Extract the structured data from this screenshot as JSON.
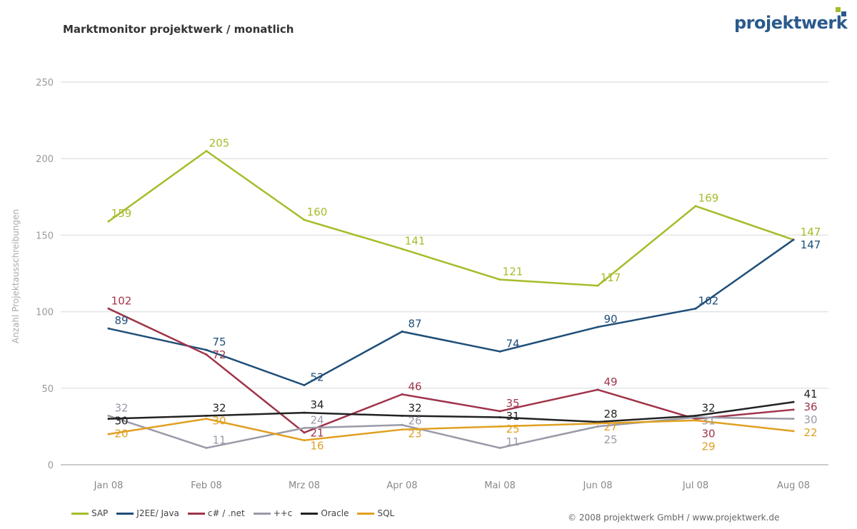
{
  "title": "Marktmonitor projektwerk / monatlich",
  "logo": "projektwerk",
  "copyright": "© 2008 projektwerk GmbH / www.projektwerk.de",
  "chart_data": {
    "type": "line",
    "title": "Marktmonitor projektwerk / monatlich",
    "ylabel": "Anzahl Projektausschreibungen",
    "xlabel": "",
    "ylim": [
      0,
      250
    ],
    "yticks": [
      0,
      50,
      100,
      150,
      200,
      250
    ],
    "grid": true,
    "legend": "bottom",
    "categories": [
      "Jan 08",
      "Feb 08",
      "Mrz 08",
      "Apr 08",
      "Mai 08",
      "Jun 08",
      "Jul 08",
      "Aug 08"
    ],
    "series": [
      {
        "name": "SAP",
        "color": "#a8bb2a",
        "values": [
          159,
          205,
          160,
          141,
          121,
          117,
          169,
          147
        ]
      },
      {
        "name": "J2EE/ Java",
        "color": "#1f4e79",
        "values": [
          89,
          75,
          52,
          87,
          74,
          90,
          102,
          147
        ]
      },
      {
        "name": "c# / .net",
        "color": "#a0344a",
        "values": [
          102,
          72,
          21,
          46,
          35,
          49,
          30,
          36
        ]
      },
      {
        "name": "++c",
        "color": "#9a9aa8",
        "values": [
          32,
          11,
          24,
          26,
          11,
          25,
          31,
          30
        ]
      },
      {
        "name": "Oracle",
        "color": "#222222",
        "values": [
          30,
          32,
          34,
          32,
          31,
          28,
          32,
          41
        ]
      },
      {
        "name": "SQL",
        "color": "#e0a020",
        "values": [
          20,
          30,
          16,
          23,
          25,
          27,
          29,
          22
        ]
      }
    ]
  }
}
